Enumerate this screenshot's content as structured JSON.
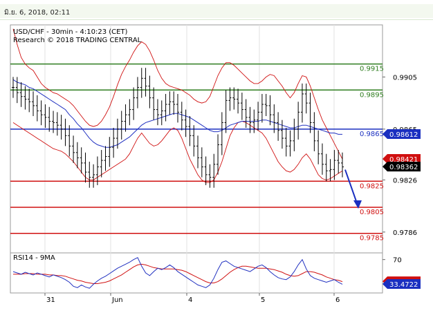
{
  "header": {
    "timestamp": "มิ.ย. 6, 2018, 02:11"
  },
  "chart_data": {
    "type": "line",
    "title": "USD/CHF - 30min - 4:10:23 (CET)",
    "subtitle": "Research © 2018 TRADING CENTRAL",
    "x_ticks": [
      "31",
      "Jun",
      "4",
      "5",
      "6"
    ],
    "price_axis_ticks": [
      0.9905,
      0.9865,
      0.9826,
      0.9786
    ],
    "ylim": [
      0.977,
      0.9945
    ],
    "resistance_levels": [
      0.9915,
      0.9895
    ],
    "pivot_level": 0.9865,
    "support_levels": [
      0.9825,
      0.9805,
      0.9785
    ],
    "level_labels": [
      "0.9915",
      "0.9895",
      "0.9865",
      "0.9825",
      "0.9805",
      "0.9785"
    ],
    "tags": {
      "moving_average": "0.98612",
      "upper_band": "0.98421",
      "last_price": "0.98362"
    },
    "price_series": [
      0.9897,
      0.9893,
      0.989,
      0.9888,
      0.9886,
      0.9883,
      0.9879,
      0.9876,
      0.9874,
      0.9871,
      0.987,
      0.9868,
      0.9865,
      0.986,
      0.9852,
      0.9847,
      0.9843,
      0.9839,
      0.9832,
      0.9828,
      0.983,
      0.9836,
      0.9841,
      0.9844,
      0.9851,
      0.9858,
      0.9865,
      0.9871,
      0.9876,
      0.988,
      0.9889,
      0.9897,
      0.9904,
      0.9898,
      0.9889,
      0.988,
      0.9876,
      0.9879,
      0.9884,
      0.9886,
      0.9884,
      0.9878,
      0.9872,
      0.9867,
      0.986,
      0.9852,
      0.9843,
      0.9836,
      0.983,
      0.9828,
      0.9838,
      0.9853,
      0.987,
      0.9887,
      0.9889,
      0.9888,
      0.9885,
      0.988,
      0.9874,
      0.987,
      0.9872,
      0.9878,
      0.9884,
      0.9883,
      0.9876,
      0.987,
      0.9864,
      0.9858,
      0.9852,
      0.9856,
      0.9865,
      0.9878,
      0.9892,
      0.9885,
      0.987,
      0.9856,
      0.9846,
      0.9838,
      0.9833,
      0.9834,
      0.9841,
      0.9839,
      0.9836
    ],
    "ma_series": [
      0.9903,
      0.9901,
      0.99,
      0.9899,
      0.9897,
      0.9896,
      0.9894,
      0.9892,
      0.989,
      0.9888,
      0.9886,
      0.9884,
      0.9882,
      0.988,
      0.9876,
      0.9873,
      0.9869,
      0.9866,
      0.9862,
      0.9858,
      0.9855,
      0.9853,
      0.9852,
      0.9851,
      0.9851,
      0.9852,
      0.9853,
      0.9855,
      0.9857,
      0.9859,
      0.9862,
      0.9865,
      0.9868,
      0.987,
      0.9871,
      0.9872,
      0.9873,
      0.9874,
      0.9875,
      0.9876,
      0.9877,
      0.9877,
      0.9876,
      0.9875,
      0.9874,
      0.9872,
      0.987,
      0.9868,
      0.9866,
      0.9864,
      0.9863,
      0.9863,
      0.9864,
      0.9866,
      0.9868,
      0.9869,
      0.987,
      0.9871,
      0.9871,
      0.9871,
      0.9871,
      0.9871,
      0.9872,
      0.9872,
      0.9871,
      0.987,
      0.9869,
      0.9868,
      0.9867,
      0.9866,
      0.9866,
      0.9867,
      0.9868,
      0.9868,
      0.9867,
      0.9866,
      0.9865,
      0.9864,
      0.9863,
      0.9862,
      0.9862,
      0.9861,
      0.9861
    ],
    "upper_band": [
      0.9942,
      0.993,
      0.992,
      0.9915,
      0.9912,
      0.991,
      0.9905,
      0.99,
      0.9897,
      0.9895,
      0.9893,
      0.9892,
      0.989,
      0.9888,
      0.9886,
      0.9883,
      0.9879,
      0.9875,
      0.9871,
      0.9868,
      0.9867,
      0.9868,
      0.9871,
      0.9876,
      0.9882,
      0.989,
      0.9899,
      0.9907,
      0.9913,
      0.9918,
      0.9924,
      0.9929,
      0.9932,
      0.993,
      0.9925,
      0.9918,
      0.991,
      0.9904,
      0.99,
      0.9898,
      0.9897,
      0.9896,
      0.9895,
      0.9893,
      0.9891,
      0.9888,
      0.9886,
      0.9885,
      0.9886,
      0.989,
      0.9898,
      0.9906,
      0.9912,
      0.9916,
      0.9916,
      0.9914,
      0.9911,
      0.9908,
      0.9905,
      0.9902,
      0.99,
      0.99,
      0.9902,
      0.9905,
      0.9907,
      0.9906,
      0.9902,
      0.9898,
      0.9893,
      0.9889,
      0.9893,
      0.99,
      0.9906,
      0.9905,
      0.9898,
      0.9889,
      0.988,
      0.9872,
      0.9866,
      0.986,
      0.9854,
      0.9848,
      0.9842
    ],
    "lower_band": [
      0.987,
      0.9868,
      0.9866,
      0.9864,
      0.9862,
      0.986,
      0.9858,
      0.9856,
      0.9854,
      0.9852,
      0.985,
      0.9849,
      0.9848,
      0.9846,
      0.9843,
      0.984,
      0.9836,
      0.9832,
      0.9828,
      0.9826,
      0.9826,
      0.9828,
      0.983,
      0.9832,
      0.9834,
      0.9836,
      0.9838,
      0.984,
      0.9842,
      0.9846,
      0.9852,
      0.9858,
      0.9862,
      0.9858,
      0.9854,
      0.9852,
      0.9853,
      0.9856,
      0.986,
      0.9864,
      0.9866,
      0.9864,
      0.9858,
      0.985,
      0.9842,
      0.9836,
      0.983,
      0.9826,
      0.9824,
      0.9824,
      0.9826,
      0.9832,
      0.984,
      0.985,
      0.986,
      0.9866,
      0.987,
      0.9871,
      0.987,
      0.9868,
      0.9866,
      0.9864,
      0.9862,
      0.9858,
      0.9852,
      0.9846,
      0.984,
      0.9836,
      0.9833,
      0.9832,
      0.9834,
      0.9838,
      0.9843,
      0.9846,
      0.9842,
      0.9836,
      0.983,
      0.9827,
      0.9826,
      0.9827,
      0.9829,
      0.9831,
      0.9833
    ],
    "rsi_label": "RSI14 - 9MA",
    "rsi_ylim": [
      20,
      80
    ],
    "rsi_ticks": [
      70
    ],
    "rsi_tags": {
      "rsi_ma": "37.4958",
      "rsi": "33.4722"
    },
    "rsi_series": [
      52,
      50,
      48,
      51,
      49,
      47,
      50,
      48,
      46,
      44,
      47,
      45,
      43,
      40,
      36,
      30,
      28,
      32,
      29,
      27,
      33,
      38,
      42,
      45,
      49,
      53,
      57,
      60,
      63,
      66,
      70,
      73,
      60,
      50,
      46,
      52,
      57,
      55,
      58,
      62,
      58,
      52,
      48,
      44,
      40,
      36,
      32,
      30,
      28,
      32,
      42,
      55,
      66,
      68,
      64,
      60,
      58,
      56,
      54,
      52,
      56,
      60,
      62,
      58,
      52,
      47,
      43,
      41,
      40,
      44,
      52,
      62,
      70,
      56,
      46,
      42,
      40,
      38,
      36,
      38,
      40,
      36,
      33
    ],
    "rsi_ma_series": [
      48,
      48,
      48,
      49,
      49,
      49,
      48,
      48,
      48,
      47,
      47,
      46,
      46,
      45,
      43,
      41,
      39,
      38,
      36,
      35,
      34,
      34,
      35,
      36,
      38,
      41,
      44,
      47,
      51,
      55,
      59,
      62,
      63,
      62,
      60,
      58,
      57,
      56,
      56,
      56,
      56,
      55,
      54,
      52,
      49,
      46,
      43,
      40,
      37,
      35,
      35,
      37,
      41,
      46,
      51,
      55,
      58,
      60,
      60,
      59,
      58,
      57,
      57,
      57,
      56,
      55,
      53,
      51,
      48,
      46,
      45,
      46,
      49,
      52,
      52,
      51,
      49,
      47,
      44,
      42,
      40,
      39,
      37
    ]
  }
}
